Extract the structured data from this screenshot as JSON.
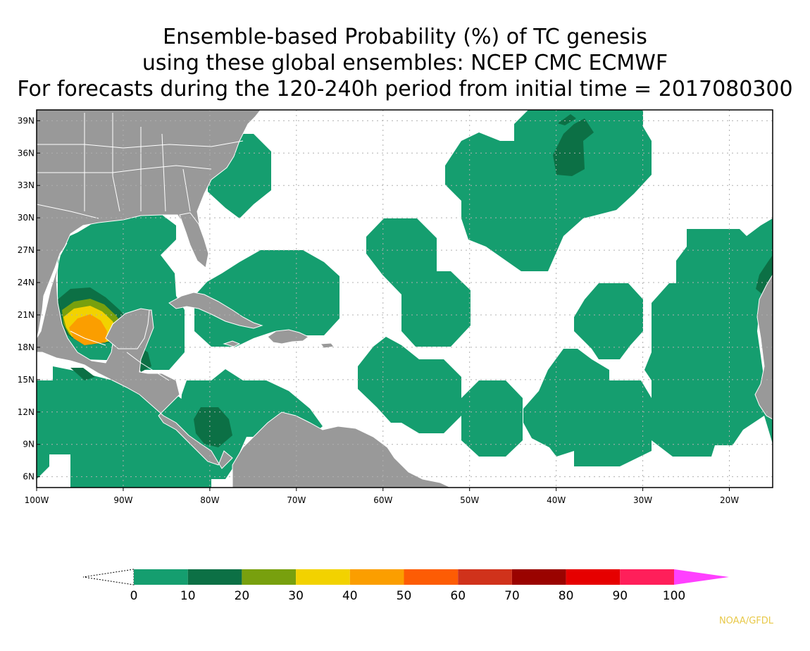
{
  "title": {
    "line1": "Ensemble-based Probability (%) of TC genesis",
    "line2": "using these global ensembles:   NCEP CMC ECMWF",
    "line3": "For forecasts during the 120-240h period from initial time = 2017080300"
  },
  "map": {
    "lon_range": [
      -100,
      -15
    ],
    "lat_range": [
      5,
      40
    ],
    "lon_ticks": [
      {
        "value": -100,
        "label": "100W"
      },
      {
        "value": -90,
        "label": "90W"
      },
      {
        "value": -80,
        "label": "80W"
      },
      {
        "value": -70,
        "label": "70W"
      },
      {
        "value": -60,
        "label": "60W"
      },
      {
        "value": -50,
        "label": "50W"
      },
      {
        "value": -40,
        "label": "40W"
      },
      {
        "value": -30,
        "label": "30W"
      },
      {
        "value": -20,
        "label": "20W"
      }
    ],
    "lat_ticks": [
      {
        "value": 6,
        "label": "6N"
      },
      {
        "value": 9,
        "label": "9N"
      },
      {
        "value": 12,
        "label": "12N"
      },
      {
        "value": 15,
        "label": "15N"
      },
      {
        "value": 18,
        "label": "18N"
      },
      {
        "value": 21,
        "label": "21N"
      },
      {
        "value": 24,
        "label": "24N"
      },
      {
        "value": 27,
        "label": "27N"
      },
      {
        "value": 30,
        "label": "30N"
      },
      {
        "value": 33,
        "label": "33N"
      },
      {
        "value": 36,
        "label": "36N"
      },
      {
        "value": 39,
        "label": "39N"
      }
    ],
    "grid": true,
    "land_color": "#999999",
    "ocean_color": "#ffffff"
  },
  "legend": {
    "labels": [
      "0",
      "10",
      "20",
      "30",
      "40",
      "50",
      "60",
      "70",
      "80",
      "90",
      "100"
    ],
    "colors": [
      "#159e6f",
      "#0c7045",
      "#78a00e",
      "#f2d200",
      "#fb9e00",
      "#fd5c04",
      "#d0321b",
      "#9a0300",
      "#e60000",
      "#ff1f5a",
      "#ff40ff"
    ]
  },
  "credit": "NOAA/GFDL"
}
